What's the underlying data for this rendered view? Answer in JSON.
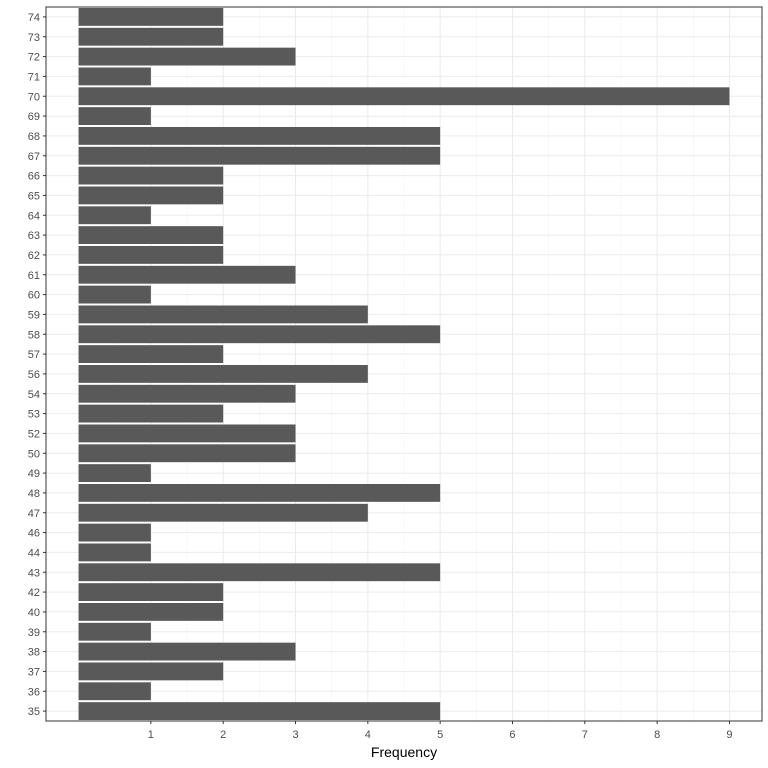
{
  "chart_data": {
    "type": "bar",
    "orientation": "horizontal",
    "categories": [
      "35",
      "36",
      "37",
      "38",
      "39",
      "40",
      "42",
      "43",
      "44",
      "46",
      "47",
      "48",
      "49",
      "50",
      "52",
      "53",
      "54",
      "56",
      "57",
      "58",
      "59",
      "60",
      "61",
      "62",
      "63",
      "64",
      "65",
      "66",
      "67",
      "68",
      "69",
      "70",
      "71",
      "72",
      "73",
      "74"
    ],
    "values": [
      5,
      1,
      2,
      3,
      1,
      2,
      2,
      5,
      1,
      1,
      4,
      5,
      1,
      3,
      3,
      2,
      3,
      4,
      2,
      5,
      4,
      1,
      3,
      2,
      2,
      1,
      2,
      2,
      5,
      5,
      1,
      9,
      1,
      3,
      2,
      2
    ],
    "title": "",
    "xlabel": "Frequency",
    "ylabel": "",
    "xlim": [
      -0.45,
      9.45
    ],
    "x_ticks": [
      "1",
      "2",
      "3",
      "4",
      "5",
      "6",
      "7",
      "8",
      "9"
    ],
    "grid": true,
    "colors": {
      "bar": "#595959",
      "grid_major": "#ebebeb",
      "grid_minor": "#f4f4f4",
      "panel_border": "#333333",
      "tick_text": "#4d4d4d"
    }
  }
}
